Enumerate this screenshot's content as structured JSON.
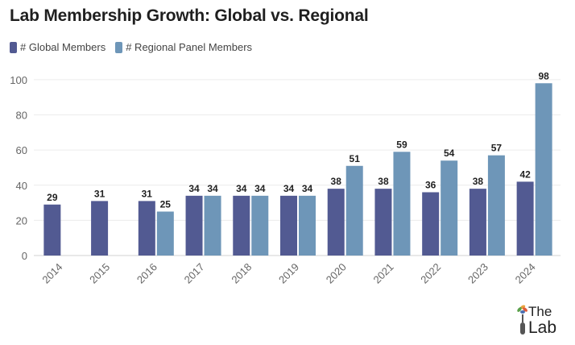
{
  "chart_data": {
    "type": "bar",
    "title": "Lab Membership Growth: Global vs. Regional",
    "categories": [
      "2014",
      "2015",
      "2016",
      "2017",
      "2018",
      "2019",
      "2020",
      "2021",
      "2022",
      "2023",
      "2024"
    ],
    "series": [
      {
        "name": "# Global Members",
        "color": "#525a92",
        "values": [
          29,
          31,
          31,
          34,
          34,
          34,
          38,
          38,
          36,
          38,
          42
        ]
      },
      {
        "name": "# Regional Panel Members",
        "color": "#6e96b8",
        "values": [
          null,
          null,
          25,
          34,
          34,
          34,
          51,
          59,
          54,
          57,
          98
        ]
      }
    ],
    "yticks": [
      0,
      20,
      40,
      60,
      80,
      100
    ],
    "ylim": [
      0,
      105
    ],
    "xlabel": "",
    "ylabel": "",
    "grid": true,
    "legend": "top-left"
  },
  "logo": {
    "line1": "The",
    "line2": "Lab"
  }
}
